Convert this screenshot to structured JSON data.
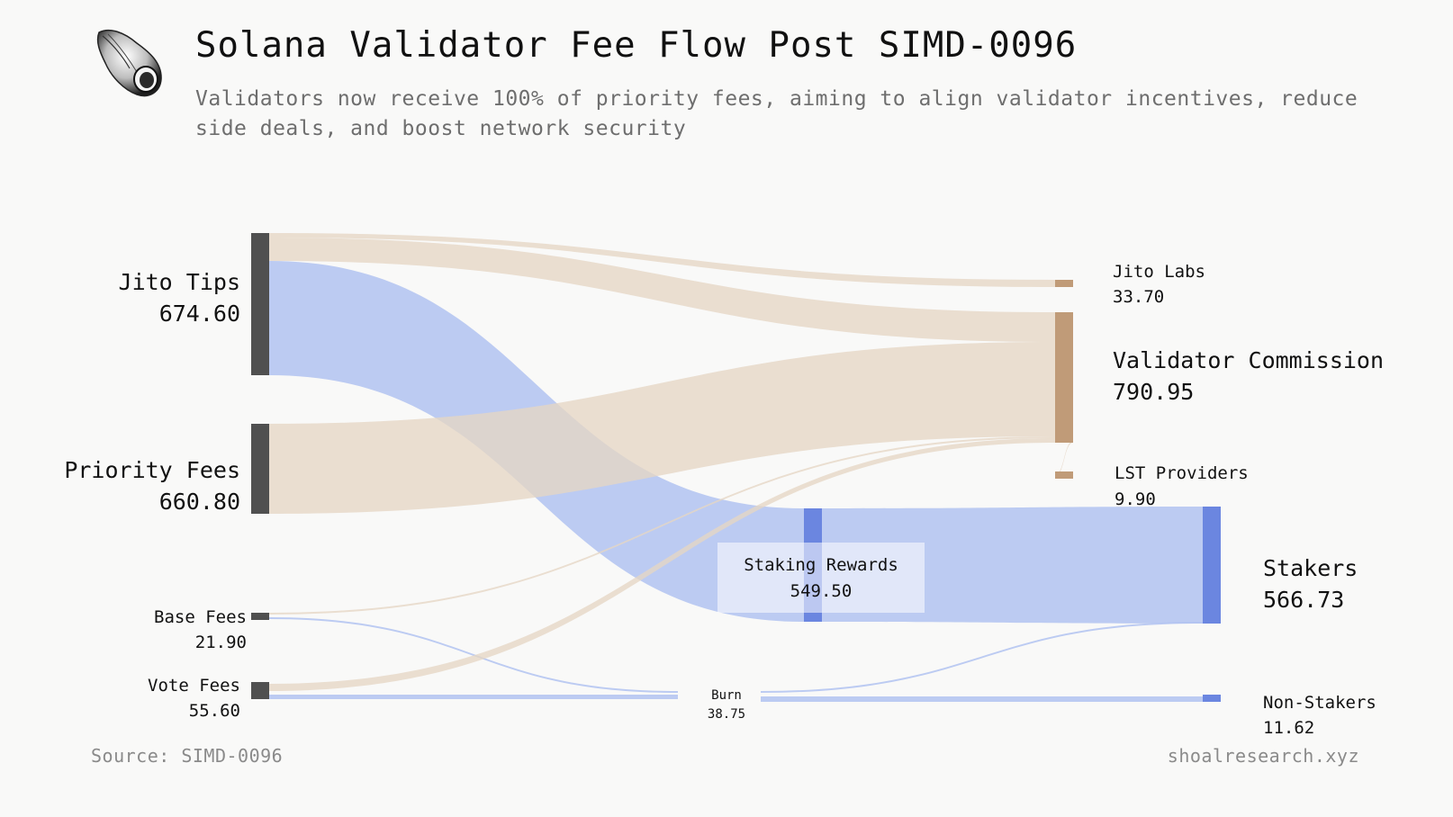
{
  "header": {
    "title": "Solana Validator Fee Flow Post SIMD-0096",
    "subtitle": "Validators now receive 100% of priority fees, aiming to align validator incentives, reduce side deals, and boost network security",
    "logo_icon": "shell-icon"
  },
  "footer": {
    "source": "Source: SIMD-0096",
    "site": "shoalresearch.xyz"
  },
  "colors": {
    "source_node": "#505050",
    "commission_node": "#c09b78",
    "staker_node": "#6b86e0",
    "tan_flow": "#e6d6c4",
    "blue_flow": "#b2c3f1"
  },
  "chart_data": {
    "type": "sankey",
    "nodes": [
      {
        "id": "jito_tips",
        "label": "Jito Tips",
        "value": "674.60",
        "amount": 674.6
      },
      {
        "id": "priority_fees",
        "label": "Priority Fees",
        "value": "660.80",
        "amount": 660.8
      },
      {
        "id": "base_fees",
        "label": "Base Fees",
        "value": "21.90",
        "amount": 21.9
      },
      {
        "id": "vote_fees",
        "label": "Vote Fees",
        "value": "55.60",
        "amount": 55.6
      },
      {
        "id": "staking_rewards",
        "label": "Staking Rewards",
        "value": "549.50",
        "amount": 549.5
      },
      {
        "id": "burn",
        "label": "Burn",
        "value": "38.75",
        "amount": 38.75
      },
      {
        "id": "jito_labs",
        "label": "Jito Labs",
        "value": "33.70",
        "amount": 33.7
      },
      {
        "id": "validator_commission",
        "label": "Validator Commission",
        "value": "790.95",
        "amount": 790.95
      },
      {
        "id": "lst_providers",
        "label": "LST Providers",
        "value": "9.90",
        "amount": 9.9
      },
      {
        "id": "stakers",
        "label": "Stakers",
        "value": "566.73",
        "amount": 566.73
      },
      {
        "id": "non_stakers",
        "label": "Non-Stakers",
        "value": "11.62",
        "amount": 11.62
      }
    ],
    "links": [
      {
        "source": "jito_tips",
        "target": "jito_labs",
        "value": 33.7
      },
      {
        "source": "jito_tips",
        "target": "validator_commission",
        "value": 91.4
      },
      {
        "source": "jito_tips",
        "target": "staking_rewards",
        "value": 549.5
      },
      {
        "source": "priority_fees",
        "target": "validator_commission",
        "value": 660.8
      },
      {
        "source": "base_fees",
        "target": "validator_commission",
        "value": 10.95
      },
      {
        "source": "base_fees",
        "target": "burn",
        "value": 10.95
      },
      {
        "source": "vote_fees",
        "target": "validator_commission",
        "value": 27.8
      },
      {
        "source": "vote_fees",
        "target": "burn",
        "value": 27.8
      },
      {
        "source": "validator_commission",
        "target": "lst_providers",
        "value": 9.9
      },
      {
        "source": "staking_rewards",
        "target": "stakers",
        "value": 549.5
      },
      {
        "source": "burn",
        "target": "stakers",
        "value": 17.23
      },
      {
        "source": "burn",
        "target": "non_stakers",
        "value": 11.62
      }
    ]
  }
}
